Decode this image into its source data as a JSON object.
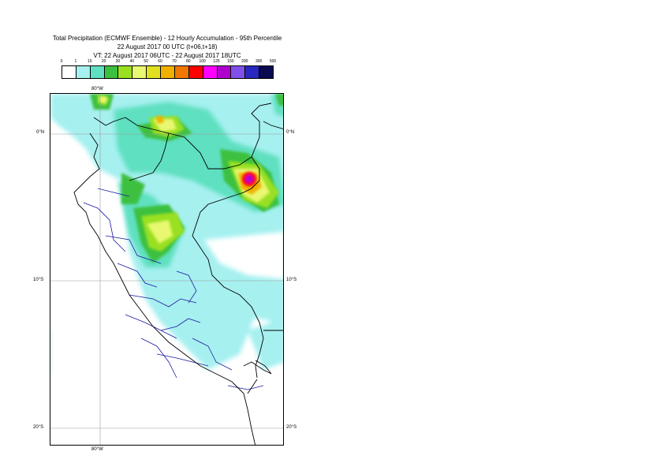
{
  "title": {
    "line1": "Total Precipitation (ECMWF Ensemble) - 12 Hourly Accumulation - 95th Percentile",
    "line2": "22 August 2017 00 UTC (t+06,t+18)",
    "line3": "VT: 22 August 2017 06UTC - 22 August 2017 18UTC"
  },
  "legend": {
    "ticks": [
      "0",
      "1",
      "10",
      "20",
      "30",
      "40",
      "50",
      "60",
      "70",
      "80",
      "100",
      "125",
      "150",
      "200",
      "300",
      "500"
    ],
    "colors": [
      "#ffffff",
      "#a6f0f0",
      "#5fe0c0",
      "#3cc040",
      "#9ae020",
      "#e8f870",
      "#e0e020",
      "#f0b000",
      "#f07800",
      "#ff0000",
      "#ff00ff",
      "#b000d0",
      "#8050e8",
      "#2828c0",
      "#0a0a50"
    ]
  },
  "axes": {
    "lat_labels": [
      "0°N",
      "10°S",
      "20°S"
    ],
    "lon_labels_top": "80°W",
    "lon_labels_bottom": "80°W"
  }
}
